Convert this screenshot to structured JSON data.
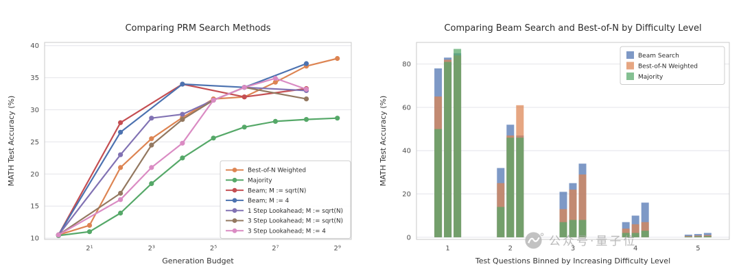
{
  "figure": {
    "background": "#ffffff",
    "grid_color": "#e4e4ea",
    "spine_color": "#c9c9c9",
    "title_color": "#2b2b2b",
    "tick_color": "#4d4d4d"
  },
  "watermark": {
    "text": "公众号·量子位",
    "color": "#a9a9a9",
    "logo": "qbitai-bird-logo"
  },
  "chart_data": [
    {
      "type": "line",
      "title": "Comparing PRM Search Methods",
      "xlabel": "Generation Budget",
      "ylabel": "MATH Test Accuracy (%)",
      "x_scale": "log2",
      "xlim": [
        -0.45,
        9.45
      ],
      "ylim": [
        9.8,
        40.5
      ],
      "x_ticks": [
        {
          "v": 1,
          "label": "2¹"
        },
        {
          "v": 3,
          "label": "2³"
        },
        {
          "v": 5,
          "label": "2⁵"
        },
        {
          "v": 7,
          "label": "2⁷"
        },
        {
          "v": 9,
          "label": "2⁹"
        }
      ],
      "y_ticks": [
        10,
        15,
        20,
        25,
        30,
        35,
        40
      ],
      "grid": true,
      "legend_position": "lower right",
      "series": [
        {
          "name": "Best-of-N Weighted",
          "color": "#dd8452",
          "x": [
            0,
            1,
            2,
            3,
            4,
            5,
            6,
            7,
            8,
            9
          ],
          "y": [
            10.5,
            12.0,
            21.0,
            25.5,
            28.8,
            31.7,
            32.0,
            34.3,
            36.8,
            38.0
          ]
        },
        {
          "name": "Majority",
          "color": "#55a868",
          "x": [
            0,
            1,
            2,
            3,
            4,
            5,
            6,
            7,
            8,
            9
          ],
          "y": [
            10.4,
            11.0,
            13.9,
            18.5,
            22.5,
            25.6,
            27.3,
            28.2,
            28.5,
            28.7
          ]
        },
        {
          "name": "Beam; M := sqrt(N)",
          "color": "#c44e52",
          "x": [
            0,
            2,
            4,
            6,
            8
          ],
          "y": [
            10.5,
            28.0,
            34.0,
            32.0,
            33.3
          ]
        },
        {
          "name": "Beam; M := 4",
          "color": "#4c72b0",
          "x": [
            0,
            2,
            4,
            6,
            8
          ],
          "y": [
            10.5,
            26.5,
            34.0,
            33.5,
            37.2
          ]
        },
        {
          "name": "1 Step Lookahead; M := sqrt(N)",
          "color": "#8172b3",
          "x": [
            0,
            2,
            3,
            4,
            5,
            6,
            8
          ],
          "y": [
            10.5,
            23.0,
            28.7,
            29.3,
            31.5,
            33.5,
            33.0
          ]
        },
        {
          "name": "3 Step Lookahead; M := sqrt(N)",
          "color": "#937860",
          "x": [
            0,
            2,
            3,
            4,
            5,
            6,
            8
          ],
          "y": [
            10.5,
            17.0,
            24.5,
            28.5,
            31.5,
            33.5,
            31.7
          ]
        },
        {
          "name": "3 Step Lookahead; M := 4",
          "color": "#da8bc3",
          "x": [
            0,
            2,
            3,
            4,
            5,
            6,
            7,
            8
          ],
          "y": [
            10.5,
            16.0,
            21.0,
            24.8,
            31.5,
            33.5,
            34.9,
            33.2
          ]
        }
      ]
    },
    {
      "type": "bar",
      "title": "Comparing Beam Search and Best-of-N by Difficulty Level",
      "xlabel": "Test Questions Binned by Increasing Difficulty Level",
      "ylabel": "MATH Test Accuracy (%)",
      "categories": [
        "1",
        "2",
        "3",
        "4",
        "5"
      ],
      "y_ticks": [
        0,
        20,
        40,
        60,
        80
      ],
      "ylim": [
        -1,
        90
      ],
      "grid": true,
      "bar_alpha": 0.72,
      "legend_position": "upper right",
      "legend": [
        {
          "name": "Beam Search",
          "color": "#4c72b0",
          "key": "beam"
        },
        {
          "name": "Best-of-N Weighted",
          "color": "#dd8452",
          "key": "best_of_n"
        },
        {
          "name": "Majority",
          "color": "#55a868",
          "key": "majority"
        }
      ],
      "groups": [
        {
          "category": "1",
          "bars": [
            {
              "beam": 78,
              "best_of_n": 65,
              "majority": 50
            },
            {
              "beam": 83,
              "best_of_n": 82,
              "majority": 81
            },
            {
              "beam": 85,
              "best_of_n": 84,
              "majority": 87
            }
          ]
        },
        {
          "category": "2",
          "bars": [
            {
              "beam": 32,
              "best_of_n": 25,
              "majority": 14
            },
            {
              "beam": 52,
              "best_of_n": 47,
              "majority": 46
            },
            {
              "beam": 47,
              "best_of_n": 61,
              "majority": 46
            }
          ]
        },
        {
          "category": "3",
          "bars": [
            {
              "beam": 21,
              "best_of_n": 13,
              "majority": 7
            },
            {
              "beam": 25,
              "best_of_n": 22,
              "majority": 8
            },
            {
              "beam": 34,
              "best_of_n": 29,
              "majority": 8
            }
          ]
        },
        {
          "category": "4",
          "bars": [
            {
              "beam": 7,
              "best_of_n": 4,
              "majority": 2
            },
            {
              "beam": 10,
              "best_of_n": 6,
              "majority": 2
            },
            {
              "beam": 16,
              "best_of_n": 7,
              "majority": 3
            }
          ]
        },
        {
          "category": "5",
          "bars": [
            {
              "beam": 1.2,
              "best_of_n": 0.6,
              "majority": 0.3
            },
            {
              "beam": 1.5,
              "best_of_n": 0.8,
              "majority": 0.4
            },
            {
              "beam": 2.0,
              "best_of_n": 1.0,
              "majority": 0.5
            }
          ]
        }
      ]
    }
  ]
}
